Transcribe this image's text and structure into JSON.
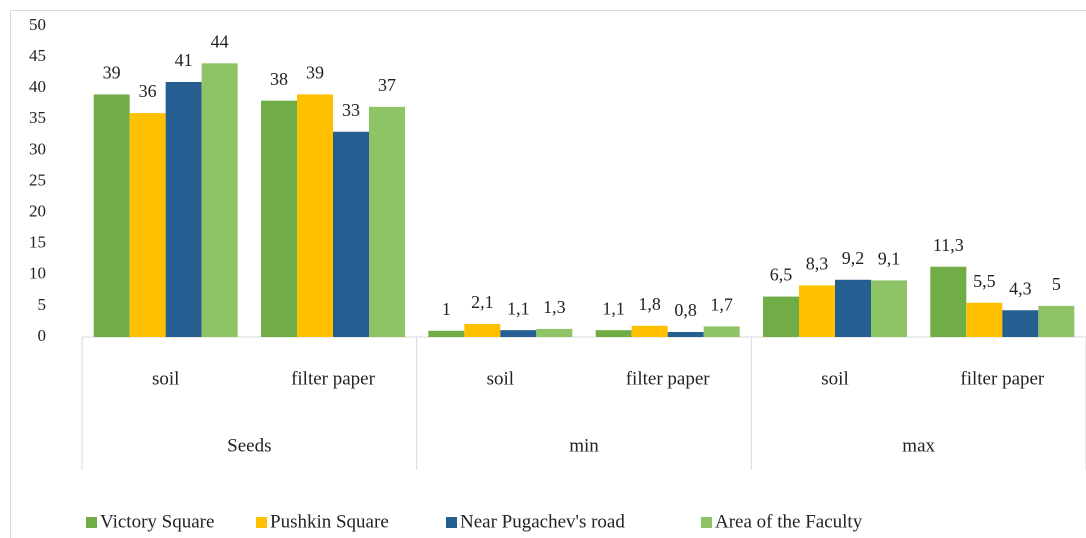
{
  "chart_data": {
    "type": "bar",
    "categories": [
      "soil",
      "filter paper",
      "soil",
      "filter paper",
      "soil",
      "filter paper"
    ],
    "category_groups": [
      "Seeds",
      "min",
      "max"
    ],
    "series": [
      {
        "name": "Victory Square",
        "color": "#70ad47",
        "values": [
          39,
          38,
          1,
          1.1,
          6.5,
          11.3
        ],
        "value_labels": [
          "39",
          "38",
          "1",
          "1,1",
          "6,5",
          "11,3"
        ]
      },
      {
        "name": "Pushkin Square",
        "color": "#ffc000",
        "values": [
          36,
          39,
          2.1,
          1.8,
          8.3,
          5.5
        ],
        "value_labels": [
          "36",
          "39",
          "2,1",
          "1,8",
          "8,3",
          "5,5"
        ]
      },
      {
        "name": "Near Pugachev's road",
        "color": "#255e91",
        "values": [
          41,
          33,
          1.1,
          0.8,
          9.2,
          4.3
        ],
        "value_labels": [
          "41",
          "33",
          "1,1",
          "0,8",
          "9,2",
          "4,3"
        ]
      },
      {
        "name": "Area of the Faculty",
        "color": "#8fc466",
        "values": [
          44,
          37,
          1.3,
          1.7,
          9.1,
          5
        ],
        "value_labels": [
          "44",
          "37",
          "1,3",
          "1,7",
          "9,1",
          "5"
        ]
      }
    ],
    "ylim": [
      0,
      50
    ],
    "yticks": [
      0,
      5,
      10,
      15,
      20,
      25,
      30,
      35,
      40,
      45,
      50
    ],
    "grid": false,
    "legend": "bottom"
  }
}
